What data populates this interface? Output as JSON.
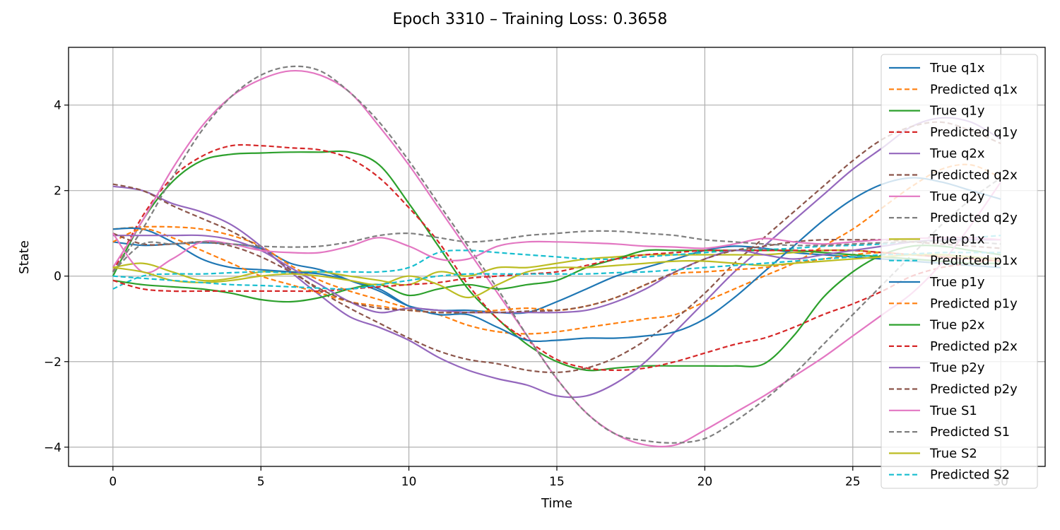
{
  "chart_data": {
    "type": "line",
    "title": "Epoch 3310 – Training Loss: 0.3658",
    "xlabel": "Time",
    "ylabel": "State",
    "xlim": [
      -1.5,
      31.5
    ],
    "ylim": [
      -4.45,
      5.35
    ],
    "xticks": [
      0,
      5,
      10,
      15,
      20,
      25,
      30
    ],
    "yticks": [
      -4,
      -2,
      0,
      2,
      4
    ],
    "xtick_labels": [
      "0",
      "5",
      "10",
      "15",
      "20",
      "25",
      "30"
    ],
    "ytick_labels": [
      "−4",
      "−2",
      "0",
      "2",
      "4"
    ],
    "grid": true,
    "legend_position": "upper right",
    "x": [
      0,
      1,
      2,
      3,
      4,
      5,
      6,
      7,
      8,
      9,
      10,
      11,
      12,
      13,
      14,
      15,
      16,
      17,
      18,
      19,
      20,
      21,
      22,
      23,
      24,
      25,
      26,
      27,
      28,
      29,
      30
    ],
    "series": [
      {
        "name": "True q1x",
        "color": "#1f77b4",
        "dash": "solid",
        "values": [
          0.8,
          0.72,
          0.75,
          0.78,
          0.75,
          0.65,
          0.3,
          0.15,
          -0.1,
          -0.35,
          -0.7,
          -0.8,
          -0.8,
          -0.85,
          -0.85,
          -0.6,
          -0.3,
          0.0,
          0.2,
          0.4,
          0.6,
          0.7,
          0.65,
          0.55,
          0.5,
          0.45,
          0.4,
          0.35,
          0.3,
          0.25,
          0.2
        ]
      },
      {
        "name": "Predicted q1x",
        "color": "#ff7f0e",
        "dash": "dashed",
        "values": [
          1.1,
          1.15,
          1.15,
          1.1,
          0.95,
          0.7,
          0.25,
          -0.1,
          -0.35,
          -0.55,
          -0.75,
          -0.9,
          -1.15,
          -1.3,
          -1.35,
          -1.3,
          -1.2,
          -1.1,
          -1.0,
          -0.9,
          -0.6,
          -0.3,
          0.0,
          0.3,
          0.7,
          1.1,
          1.6,
          2.1,
          2.5,
          2.6,
          2.3
        ]
      },
      {
        "name": "True q1y",
        "color": "#2ca02c",
        "dash": "solid",
        "values": [
          0.0,
          1.3,
          2.2,
          2.7,
          2.85,
          2.88,
          2.9,
          2.9,
          2.9,
          2.6,
          1.7,
          0.7,
          -0.3,
          -1.0,
          -1.6,
          -2.0,
          -2.2,
          -2.15,
          -2.1,
          -2.1,
          -2.1,
          -2.1,
          -2.05,
          -1.4,
          -0.5,
          0.1,
          0.5,
          0.7,
          0.7,
          0.6,
          0.5
        ]
      },
      {
        "name": "Predicted q1y",
        "color": "#d62728",
        "dash": "dashed",
        "values": [
          0.1,
          1.4,
          2.3,
          2.8,
          3.05,
          3.05,
          3.0,
          2.95,
          2.75,
          2.3,
          1.6,
          0.8,
          -0.2,
          -1.0,
          -1.5,
          -1.95,
          -2.15,
          -2.2,
          -2.15,
          -2.0,
          -1.8,
          -1.6,
          -1.45,
          -1.2,
          -0.9,
          -0.65,
          -0.35,
          0.0,
          0.2,
          0.3,
          0.4
        ]
      },
      {
        "name": "True q2x",
        "color": "#9467bd",
        "dash": "solid",
        "values": [
          2.1,
          2.0,
          1.7,
          1.5,
          1.2,
          0.7,
          0.1,
          -0.45,
          -0.95,
          -1.2,
          -1.5,
          -1.9,
          -2.2,
          -2.4,
          -2.55,
          -2.8,
          -2.8,
          -2.5,
          -2.0,
          -1.3,
          -0.6,
          0.1,
          0.7,
          1.3,
          1.9,
          2.5,
          3.0,
          3.5,
          3.7,
          3.6,
          3.2
        ]
      },
      {
        "name": "Predicted q2x",
        "color": "#8c564b",
        "dash": "dashed",
        "values": [
          2.15,
          2.0,
          1.65,
          1.35,
          1.05,
          0.65,
          0.15,
          -0.35,
          -0.75,
          -1.1,
          -1.45,
          -1.75,
          -1.95,
          -2.05,
          -2.2,
          -2.25,
          -2.15,
          -1.9,
          -1.5,
          -1.0,
          -0.4,
          0.3,
          0.9,
          1.5,
          2.1,
          2.7,
          3.2,
          3.5,
          3.6,
          3.4,
          3.1
        ]
      },
      {
        "name": "True q2y",
        "color": "#e377c2",
        "dash": "solid",
        "values": [
          0.2,
          1.3,
          2.5,
          3.5,
          4.2,
          4.6,
          4.8,
          4.7,
          4.3,
          3.5,
          2.6,
          1.6,
          0.6,
          -0.4,
          -1.4,
          -2.4,
          -3.2,
          -3.7,
          -3.95,
          -3.95,
          -3.6,
          -3.2,
          -2.8,
          -2.35,
          -1.9,
          -1.4,
          -0.9,
          -0.4,
          0.3,
          1.2,
          2.2
        ]
      },
      {
        "name": "Predicted q2y",
        "color": "#7f7f7f",
        "dash": "dashed",
        "values": [
          0.1,
          1.1,
          2.3,
          3.4,
          4.2,
          4.7,
          4.9,
          4.8,
          4.3,
          3.6,
          2.7,
          1.7,
          0.7,
          -0.3,
          -1.4,
          -2.4,
          -3.2,
          -3.7,
          -3.85,
          -3.9,
          -3.8,
          -3.4,
          -2.9,
          -2.3,
          -1.6,
          -0.9,
          -0.2,
          0.5,
          1.2,
          1.8,
          2.3
        ]
      },
      {
        "name": "True p1x",
        "color": "#bcbd22",
        "dash": "solid",
        "values": [
          0.2,
          0.3,
          0.1,
          -0.1,
          -0.05,
          0.1,
          0.1,
          0.1,
          0.0,
          -0.1,
          -0.2,
          0.1,
          0.0,
          0.2,
          0.2,
          0.3,
          0.4,
          0.45,
          0.5,
          0.5,
          0.5,
          0.5,
          0.5,
          0.55,
          0.6,
          0.6,
          0.55,
          0.5,
          0.45,
          0.4,
          0.35
        ]
      },
      {
        "name": "Predicted p1x",
        "color": "#17becf",
        "dash": "dashed",
        "values": [
          -0.3,
          0.0,
          0.05,
          0.05,
          0.08,
          0.1,
          0.08,
          0.1,
          0.1,
          0.1,
          0.2,
          0.55,
          0.6,
          0.55,
          0.5,
          0.45,
          0.4,
          0.4,
          0.45,
          0.5,
          0.55,
          0.6,
          0.62,
          0.65,
          0.7,
          0.72,
          0.75,
          0.8,
          0.85,
          0.9,
          0.95
        ]
      },
      {
        "name": "True p1y",
        "color": "#1f77b4",
        "dash": "solid",
        "values": [
          1.1,
          1.1,
          0.8,
          0.4,
          0.2,
          0.15,
          0.1,
          0.05,
          -0.1,
          -0.3,
          -0.7,
          -0.9,
          -0.9,
          -1.2,
          -1.5,
          -1.5,
          -1.45,
          -1.45,
          -1.4,
          -1.3,
          -1.0,
          -0.5,
          0.1,
          0.7,
          1.3,
          1.8,
          2.15,
          2.3,
          2.2,
          2.0,
          1.8
        ]
      },
      {
        "name": "Predicted p1y",
        "color": "#ff7f0e",
        "dash": "dashed",
        "values": [
          0.8,
          1.1,
          0.9,
          0.6,
          0.3,
          0.0,
          -0.2,
          -0.4,
          -0.6,
          -0.7,
          -0.8,
          -0.85,
          -0.85,
          -0.8,
          -0.75,
          -0.8,
          -0.7,
          -0.5,
          -0.2,
          0.05,
          0.1,
          0.15,
          0.2,
          0.3,
          0.4,
          0.5,
          0.55,
          0.5,
          0.45,
          0.4,
          0.35
        ]
      },
      {
        "name": "True p2x",
        "color": "#2ca02c",
        "dash": "solid",
        "values": [
          -0.1,
          -0.2,
          -0.25,
          -0.3,
          -0.4,
          -0.55,
          -0.6,
          -0.5,
          -0.3,
          -0.2,
          -0.45,
          -0.3,
          -0.2,
          -0.3,
          -0.2,
          -0.1,
          0.2,
          0.4,
          0.6,
          0.6,
          0.6,
          0.6,
          0.6,
          0.6,
          0.55,
          0.5,
          0.45,
          0.4,
          0.35,
          0.3,
          0.3
        ]
      },
      {
        "name": "Predicted p2x",
        "color": "#d62728",
        "dash": "dashed",
        "values": [
          -0.1,
          -0.3,
          -0.35,
          -0.35,
          -0.35,
          -0.35,
          -0.35,
          -0.35,
          -0.3,
          -0.25,
          -0.2,
          -0.15,
          -0.05,
          0.0,
          0.05,
          0.1,
          0.25,
          0.4,
          0.5,
          0.55,
          0.6,
          0.6,
          0.6,
          0.6,
          0.6,
          0.6,
          0.55,
          0.5,
          0.45,
          0.4,
          0.35
        ]
      },
      {
        "name": "True p2y",
        "color": "#9467bd",
        "dash": "solid",
        "values": [
          0.95,
          0.95,
          0.95,
          0.95,
          0.85,
          0.6,
          0.2,
          -0.2,
          -0.6,
          -0.85,
          -0.75,
          -0.8,
          -0.85,
          -0.85,
          -0.85,
          -0.85,
          -0.8,
          -0.6,
          -0.3,
          0.1,
          0.4,
          0.6,
          0.5,
          0.4,
          0.5,
          0.6,
          0.7,
          0.8,
          0.85,
          0.85,
          0.85
        ]
      },
      {
        "name": "Predicted p2y",
        "color": "#8c564b",
        "dash": "dashed",
        "values": [
          1.0,
          0.75,
          0.75,
          0.8,
          0.7,
          0.45,
          0.1,
          -0.3,
          -0.6,
          -0.75,
          -0.8,
          -0.85,
          -0.85,
          -0.85,
          -0.82,
          -0.8,
          -0.7,
          -0.5,
          -0.2,
          0.1,
          0.4,
          0.6,
          0.7,
          0.8,
          0.85,
          0.85,
          0.85,
          0.8,
          0.75,
          0.7,
          0.65
        ]
      },
      {
        "name": "True S1",
        "color": "#e377c2",
        "dash": "solid",
        "values": [
          1.0,
          0.1,
          0.4,
          0.8,
          0.75,
          0.6,
          0.55,
          0.55,
          0.7,
          0.9,
          0.7,
          0.4,
          0.4,
          0.7,
          0.8,
          0.8,
          0.78,
          0.75,
          0.7,
          0.68,
          0.65,
          0.75,
          0.88,
          0.8,
          0.75,
          0.8,
          0.85,
          0.88,
          0.9,
          0.9,
          0.85
        ]
      },
      {
        "name": "Predicted S1",
        "color": "#7f7f7f",
        "dash": "dashed",
        "values": [
          0.1,
          0.75,
          0.75,
          0.8,
          0.75,
          0.7,
          0.68,
          0.7,
          0.8,
          0.95,
          1.0,
          0.9,
          0.8,
          0.85,
          0.95,
          1.0,
          1.05,
          1.05,
          1.0,
          0.95,
          0.85,
          0.8,
          0.75,
          0.72,
          0.72,
          0.75,
          0.78,
          0.8,
          0.82,
          0.8,
          0.75
        ]
      },
      {
        "name": "True S2",
        "color": "#bcbd22",
        "dash": "solid",
        "values": [
          0.2,
          0.1,
          -0.1,
          -0.15,
          -0.1,
          0.0,
          0.05,
          0.0,
          -0.1,
          -0.2,
          0.0,
          -0.2,
          -0.5,
          -0.2,
          0.1,
          0.2,
          0.2,
          0.25,
          0.3,
          0.35,
          0.35,
          0.3,
          0.25,
          0.3,
          0.35,
          0.4,
          0.45,
          0.5,
          0.5,
          0.45,
          0.4
        ]
      },
      {
        "name": "Predicted S2",
        "color": "#17becf",
        "dash": "dashed",
        "values": [
          0.0,
          -0.05,
          -0.1,
          -0.15,
          -0.2,
          -0.22,
          -0.25,
          -0.28,
          -0.3,
          -0.2,
          -0.1,
          0.0,
          0.05,
          0.05,
          0.05,
          0.05,
          0.05,
          0.08,
          0.1,
          0.15,
          0.2,
          0.25,
          0.3,
          0.35,
          0.4,
          0.45,
          0.5,
          0.52,
          0.55,
          0.55,
          0.55
        ]
      }
    ]
  }
}
